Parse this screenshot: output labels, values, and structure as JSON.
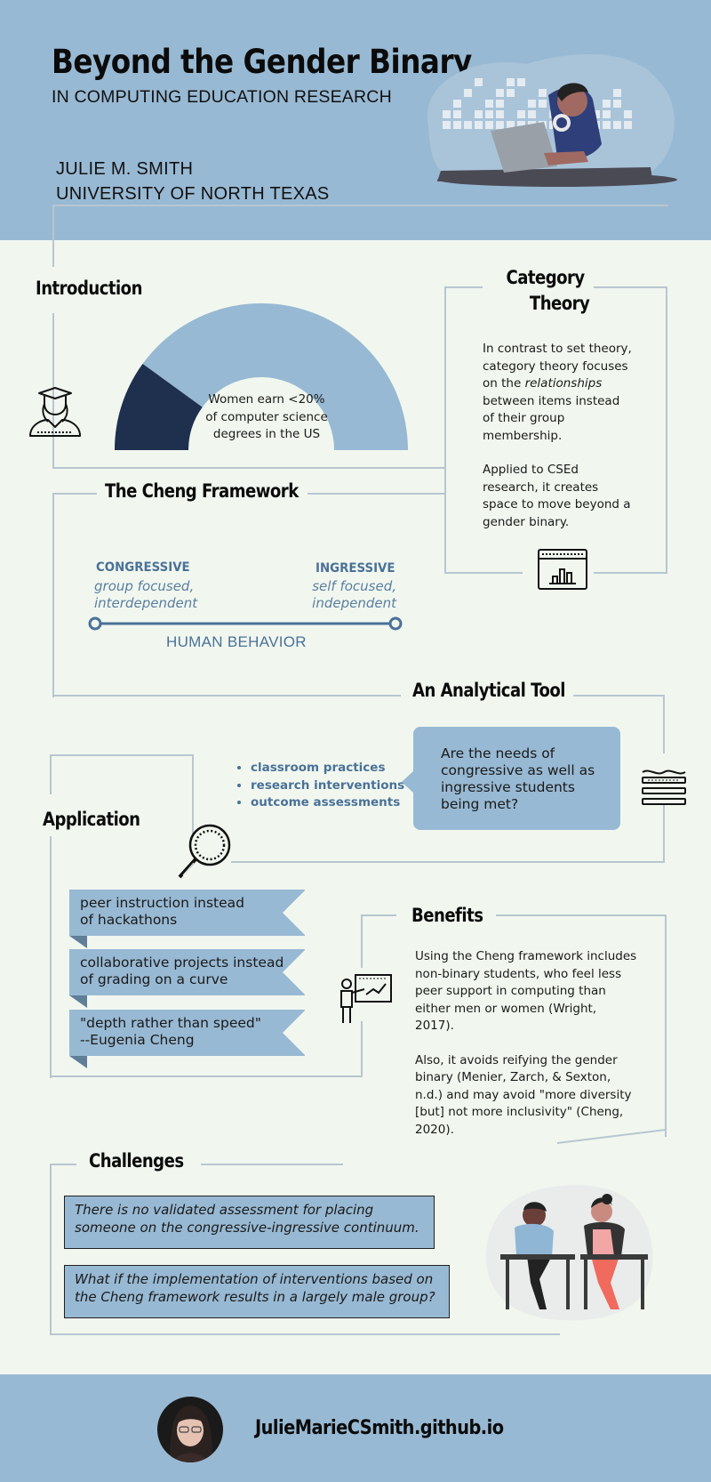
{
  "header": {
    "title": "Beyond the Gender Binary",
    "subtitle": "IN COMPUTING EDUCATION RESEARCH",
    "author": "JULIE M. SMITH",
    "affiliation": "UNIVERSITY OF NORTH TEXAS"
  },
  "introduction": {
    "heading": "Introduction",
    "stat_line1": "Women earn <20%",
    "stat_line2": "of computer science",
    "stat_line3": "degrees in the US",
    "gauge_fraction": 0.2
  },
  "category_theory": {
    "heading_line1": "Category",
    "heading_line2": "Theory",
    "p1_before": "In contrast to set theory, category theory focuses on the ",
    "p1_emph": "relationships",
    "p1_after": " between items instead of their group membership.",
    "p2": "Applied to CSEd research, it creates space to move beyond a gender binary."
  },
  "cheng": {
    "heading": "The Cheng Framework",
    "left_label": "CONGRESSIVE",
    "left_desc1": "group focused,",
    "left_desc2": "interdependent",
    "right_label": "INGRESSIVE",
    "right_desc1": "self focused,",
    "right_desc2": "independent",
    "axis_label": "HUMAN BEHAVIOR"
  },
  "analytical_tool": {
    "heading": "An Analytical Tool",
    "bullets": [
      "classroom practices",
      "research interventions",
      "outcome assessments"
    ],
    "question": "Are the needs of congressive as well as ingressive students being met?"
  },
  "application": {
    "heading": "Application",
    "banners": [
      {
        "l1": "peer instruction instead",
        "l2": "of hackathons"
      },
      {
        "l1": "collaborative projects instead",
        "l2": "of grading on a curve"
      },
      {
        "l1": "\"depth rather than speed\"",
        "l2": "--Eugenia Cheng"
      }
    ]
  },
  "benefits": {
    "heading": "Benefits",
    "p1": "Using the Cheng framework includes non-binary students, who feel less peer support in computing than either men or women (Wright, 2017).",
    "p2": "Also, it avoids reifying the gender binary (Menier, Zarch, & Sexton, n.d.) and may avoid \"more diversity [but] not more inclusivity\" (Cheng, 2020)."
  },
  "challenges": {
    "heading": "Challenges",
    "items": [
      "There is no validated assessment for placing someone on the congressive-ingressive continuum.",
      "What if the implementation of interventions based on the Cheng framework results in a largely male group?"
    ]
  },
  "footer": {
    "url": "JulieMarieCSmith.github.io"
  },
  "colors": {
    "accent_blue": "#98b9d3",
    "dark_navy": "#1f2f4e",
    "axis_blue": "#4a7198",
    "background": "#f1f7ef"
  },
  "icons": [
    "graduate-icon",
    "chart-window-icon",
    "magnifier-icon",
    "waves-icon",
    "teacher-board-icon"
  ]
}
